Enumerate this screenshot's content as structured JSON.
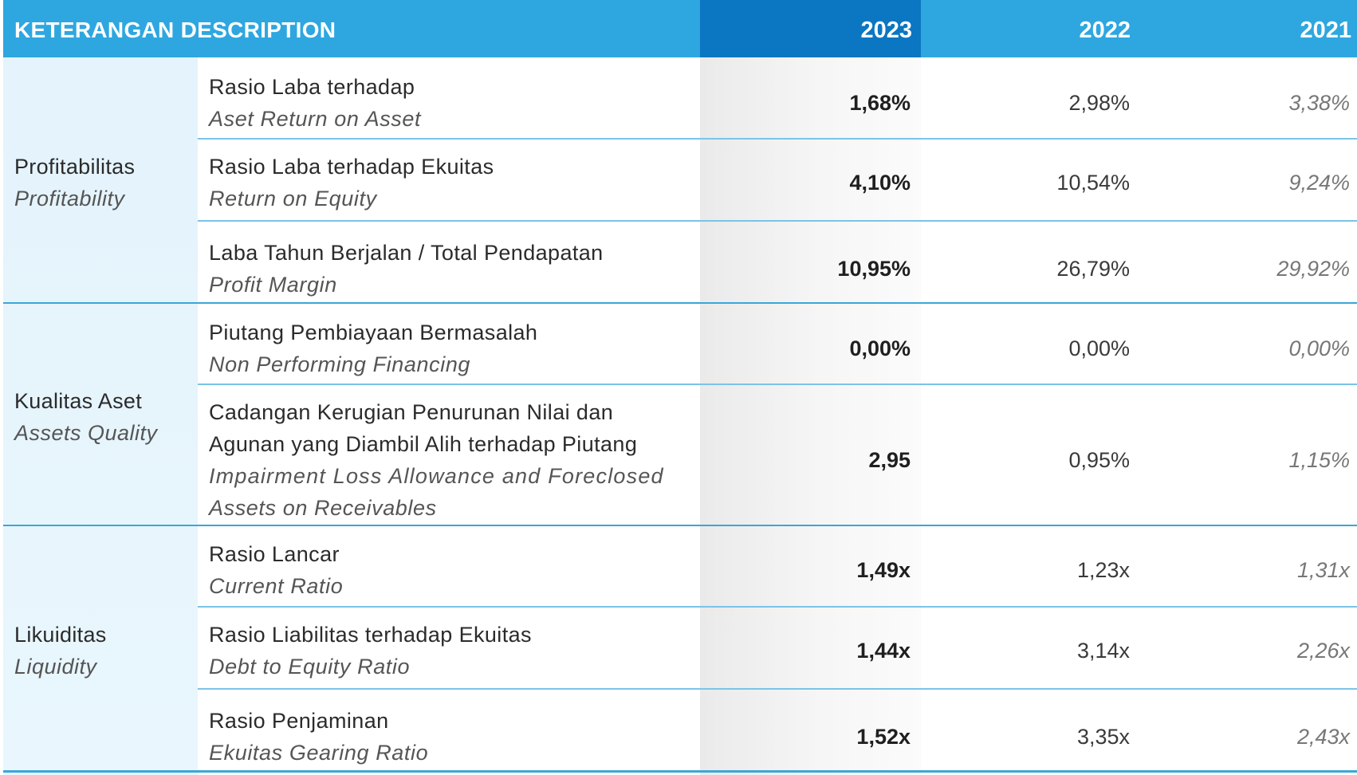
{
  "header": {
    "description": "KETERANGAN DESCRIPTION",
    "years": [
      "2023",
      "2022",
      "2021"
    ]
  },
  "groups": [
    {
      "id": "Profitabilitas",
      "en": "Profitability"
    },
    {
      "id": "Kualitas Aset",
      "en": "Assets Quality"
    },
    {
      "id": "Likuiditas",
      "en": "Liquidity"
    }
  ],
  "rows": [
    {
      "id": "Rasio Laba terhadap",
      "en": "Aset Return on Asset",
      "v2023": "1,68%",
      "v2022": "2,98%",
      "v2021": "3,38%"
    },
    {
      "id": "Rasio Laba terhadap Ekuitas",
      "en": "Return on Equity",
      "v2023": "4,10%",
      "v2022": "10,54%",
      "v2021": "9,24%"
    },
    {
      "id": "Laba Tahun Berjalan / Total Pendapatan",
      "en": "Profit Margin",
      "v2023": "10,95%",
      "v2022": "26,79%",
      "v2021": "29,92%"
    },
    {
      "id": "Piutang Pembiayaan Bermasalah",
      "en": "Non Performing Financing",
      "v2023": "0,00%",
      "v2022": "0,00%",
      "v2021": "0,00%"
    },
    {
      "id_line1": "Cadangan Kerugian Penurunan Nilai dan",
      "id_line2": "Agunan yang Diambil Alih terhadap Piutang",
      "en_line1": "Impairment Loss Allowance and Foreclosed",
      "en_line2": "Assets on Receivables",
      "v2023": "2,95",
      "v2022": "0,95%",
      "v2021": "1,15%"
    },
    {
      "id": "Rasio Lancar",
      "en": "Current Ratio",
      "v2023": "1,49x",
      "v2022": "1,23x",
      "v2021": "1,31x"
    },
    {
      "id": "Rasio Liabilitas terhadap Ekuitas",
      "en": "Debt to Equity Ratio",
      "v2023": "1,44x",
      "v2022": "3,14x",
      "v2021": "2,26x"
    },
    {
      "id": "Rasio Penjaminan",
      "en": "Ekuitas Gearing Ratio",
      "v2023": "1,52x",
      "v2022": "3,35x",
      "v2021": "2,43x"
    }
  ]
}
